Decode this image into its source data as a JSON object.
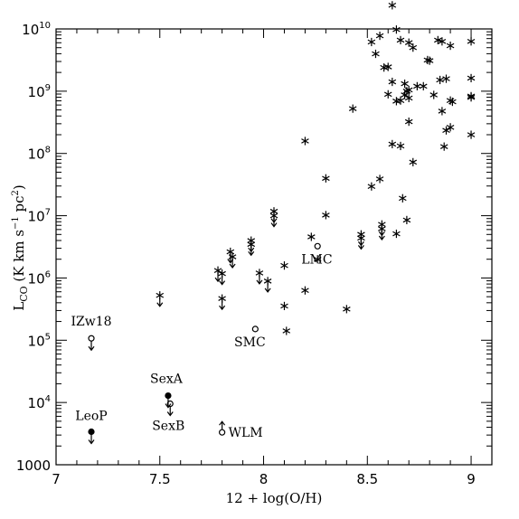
{
  "chart_data": {
    "type": "scatter",
    "xlabel": "12 + log(O/H)",
    "ylabel": "L_CO (K km s^-1 pc^2)",
    "xlim": [
      7.0,
      9.1
    ],
    "ylim_log10": [
      3,
      10
    ],
    "y_scale": "log",
    "grid": false,
    "x_ticks": [
      {
        "value": 7.0,
        "label": "7"
      },
      {
        "value": 7.5,
        "label": "7.5"
      },
      {
        "value": 8.0,
        "label": "8"
      },
      {
        "value": 8.5,
        "label": "8.5"
      },
      {
        "value": 9.0,
        "label": "9"
      }
    ],
    "y_ticks": [
      {
        "exp": 3,
        "label": "1000"
      },
      {
        "exp": 4,
        "mantissa": "10",
        "sup": "4"
      },
      {
        "exp": 5,
        "mantissa": "10",
        "sup": "5"
      },
      {
        "exp": 6,
        "mantissa": "10",
        "sup": "6"
      },
      {
        "exp": 7,
        "mantissa": "10",
        "sup": "7"
      },
      {
        "exp": 8,
        "mantissa": "10",
        "sup": "8"
      },
      {
        "exp": 9,
        "mantissa": "10",
        "sup": "9"
      },
      {
        "exp": 10,
        "mantissa": "10",
        "sup": "10"
      }
    ],
    "detections_log10": [
      [
        8.2,
        8.2
      ],
      [
        8.3,
        7.6
      ],
      [
        8.3,
        7.01
      ],
      [
        8.23,
        6.66
      ],
      [
        8.26,
        6.3
      ],
      [
        8.1,
        6.2
      ],
      [
        8.2,
        5.8
      ],
      [
        8.1,
        5.55
      ],
      [
        8.11,
        5.15
      ],
      [
        8.4,
        5.5
      ],
      [
        8.43,
        8.72
      ],
      [
        8.52,
        9.79
      ],
      [
        8.56,
        9.89
      ],
      [
        8.6,
        9.39
      ],
      [
        8.52,
        7.47
      ],
      [
        8.56,
        7.59
      ],
      [
        8.62,
        9.15
      ],
      [
        8.64,
        9.99
      ],
      [
        8.66,
        9.82
      ],
      [
        8.7,
        9.78
      ],
      [
        8.72,
        9.7
      ],
      [
        8.8,
        9.49
      ],
      [
        8.84,
        9.82
      ],
      [
        8.86,
        9.8
      ],
      [
        8.9,
        9.73
      ],
      [
        9.0,
        9.8
      ],
      [
        8.58,
        9.38
      ],
      [
        8.6,
        8.95
      ],
      [
        8.62,
        8.15
      ],
      [
        8.64,
        8.84
      ],
      [
        8.66,
        8.85
      ],
      [
        8.66,
        8.12
      ],
      [
        8.68,
        9.12
      ],
      [
        8.68,
        8.94
      ],
      [
        8.69,
        9.0
      ],
      [
        8.7,
        8.89
      ],
      [
        8.7,
        9.02
      ],
      [
        8.7,
        8.51
      ],
      [
        8.72,
        7.86
      ],
      [
        8.74,
        9.08
      ],
      [
        8.77,
        9.08
      ],
      [
        8.82,
        8.94
      ],
      [
        8.85,
        9.18
      ],
      [
        8.86,
        8.68
      ],
      [
        8.87,
        8.11
      ],
      [
        8.88,
        9.2
      ],
      [
        8.88,
        8.37
      ],
      [
        8.9,
        8.42
      ],
      [
        8.9,
        8.85
      ],
      [
        8.91,
        8.83
      ],
      [
        9.0,
        9.21
      ],
      [
        9.0,
        8.92
      ],
      [
        9.0,
        8.9
      ],
      [
        9.0,
        8.3
      ],
      [
        8.67,
        7.28
      ],
      [
        8.69,
        6.93
      ],
      [
        8.64,
        6.71
      ],
      [
        8.79,
        9.5
      ],
      [
        8.62,
        10.38
      ],
      [
        8.54,
        9.6
      ]
    ],
    "upper_limit_stars_log10": [
      [
        7.5,
        5.72
      ],
      [
        7.8,
        5.67
      ],
      [
        7.78,
        6.12
      ],
      [
        7.8,
        6.07
      ],
      [
        7.84,
        6.42
      ],
      [
        7.85,
        6.34
      ],
      [
        7.94,
        6.6
      ],
      [
        7.94,
        6.54
      ],
      [
        7.98,
        6.08
      ],
      [
        8.02,
        5.95
      ],
      [
        8.05,
        7.07
      ],
      [
        8.05,
        7.0
      ],
      [
        8.47,
        6.7
      ],
      [
        8.47,
        6.64
      ],
      [
        8.57,
        6.86
      ],
      [
        8.57,
        6.79
      ]
    ],
    "labeled_objects": [
      {
        "name": "IZw18",
        "x": 7.17,
        "log10_y": 5.03,
        "marker": "open-circle-limit"
      },
      {
        "name": "LeoP",
        "x": 7.17,
        "log10_y": 3.53,
        "marker": "filled-circle-limit"
      },
      {
        "name": "SexA",
        "x": 7.54,
        "log10_y": 4.11,
        "marker": "filled-circle-limit"
      },
      {
        "name": "SexB",
        "x": 7.55,
        "log10_y": 3.98,
        "marker": "open-circle-limit"
      },
      {
        "name": "WLM",
        "x": 7.8,
        "log10_y": 3.52,
        "marker": "open-circle-lower-limit"
      },
      {
        "name": "SMC",
        "x": 7.96,
        "log10_y": 5.18,
        "marker": "open-circle"
      },
      {
        "name": "LMC",
        "x": 8.26,
        "log10_y": 6.51,
        "marker": "open-circle"
      }
    ]
  }
}
